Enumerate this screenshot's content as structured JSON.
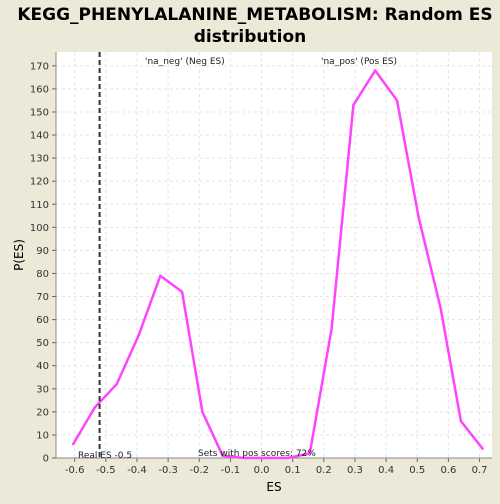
{
  "chart_data": {
    "type": "line",
    "title_lines": [
      "KEGG_PHENYLALANINE_METABOLISM: Random ES",
      "distribution"
    ],
    "xlabel": "ES",
    "ylabel": "P(ES)",
    "xlim": [
      -0.66,
      0.74
    ],
    "ylim": [
      0,
      176
    ],
    "x_ticks": [
      "-0.6",
      "-0.5",
      "-0.4",
      "-0.3",
      "-0.2",
      "-0.1",
      "0.0",
      "0.1",
      "0.2",
      "0.3",
      "0.4",
      "0.5",
      "0.6",
      "0.7"
    ],
    "x_tick_values": [
      -0.6,
      -0.5,
      -0.4,
      -0.3,
      -0.2,
      -0.1,
      0.0,
      0.1,
      0.2,
      0.3,
      0.4,
      0.5,
      0.6,
      0.7
    ],
    "y_ticks": [
      "0",
      "10",
      "20",
      "30",
      "40",
      "50",
      "60",
      "70",
      "80",
      "90",
      "100",
      "110",
      "120",
      "130",
      "140",
      "150",
      "160",
      "170"
    ],
    "y_tick_values": [
      0,
      10,
      20,
      30,
      40,
      50,
      60,
      70,
      80,
      90,
      100,
      110,
      120,
      130,
      140,
      150,
      160,
      170
    ],
    "grid": true,
    "series": [
      {
        "color": "#ff44ff",
        "x": [
          -0.605,
          -0.535,
          -0.465,
          -0.395,
          -0.325,
          -0.255,
          -0.19,
          -0.125,
          -0.055,
          0.015,
          0.085,
          0.155,
          0.225,
          0.295,
          0.365,
          0.435,
          0.505,
          0.575,
          0.64,
          0.71
        ],
        "y": [
          6,
          22,
          32,
          53,
          79,
          72,
          20,
          1,
          0,
          0,
          0,
          2,
          56,
          153,
          168,
          155,
          104,
          65,
          16,
          4
        ]
      }
    ],
    "real_es": -0.52,
    "annotations": {
      "neg_label": "'na_neg' (Neg ES)",
      "pos_label": "'na_pos' (Pos ES)",
      "real_es_label": "Real ES -0.5",
      "pos_scores_label": "Sets with pos scores: 72%"
    },
    "colors": {
      "neg_label": "#3333cc",
      "pos_label": "#cc3333",
      "real_es_line": "#333333",
      "plot_background": "#ffffff",
      "page_background": "#ece9d8"
    }
  }
}
